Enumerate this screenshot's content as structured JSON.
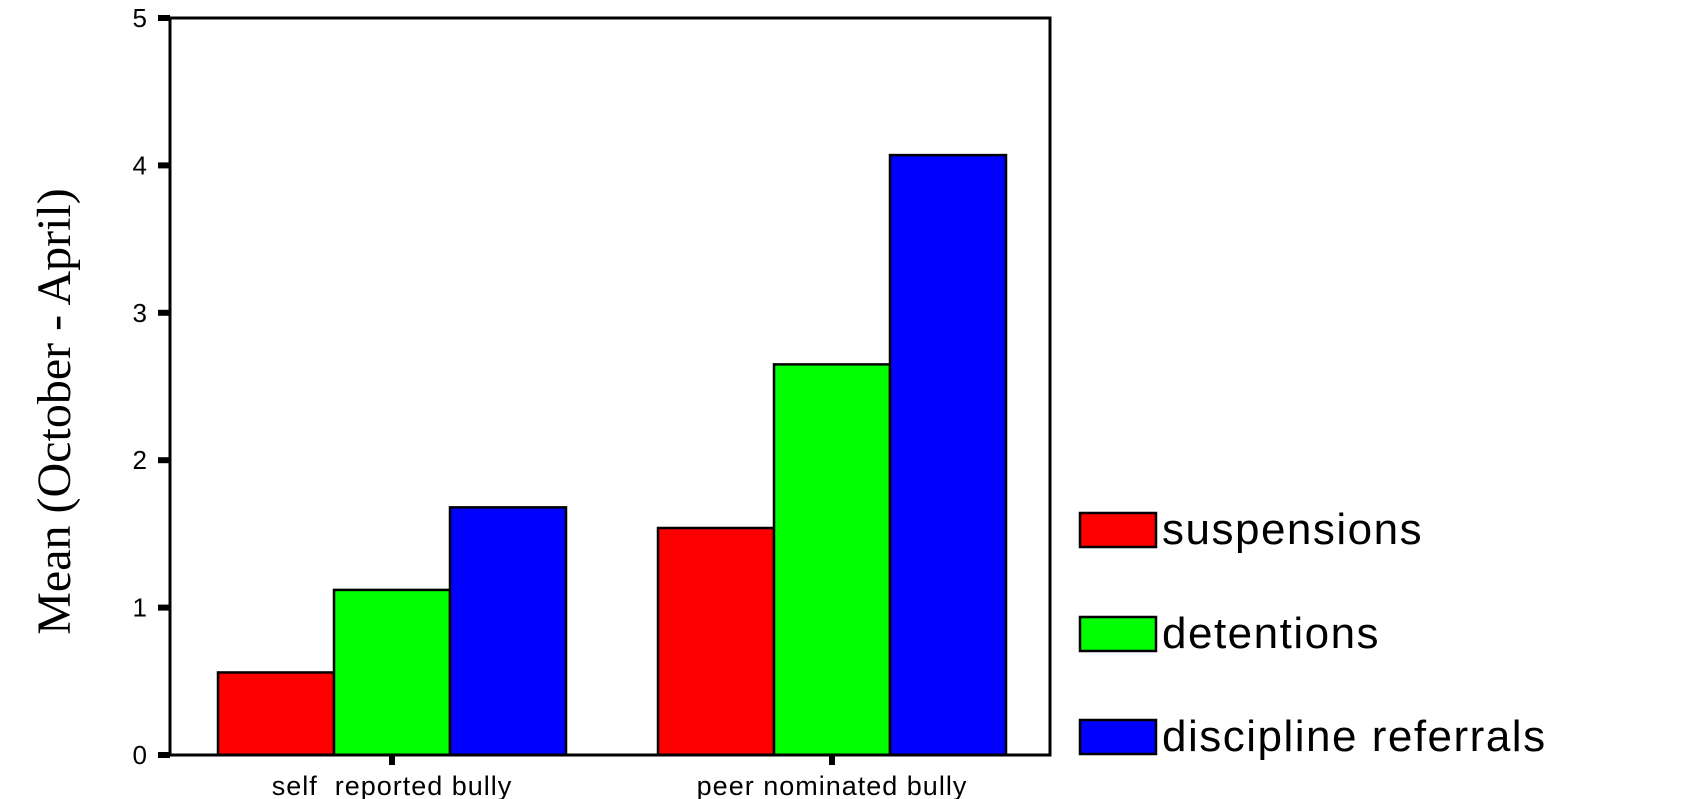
{
  "chart_data": {
    "type": "bar",
    "title": "",
    "xlabel": "",
    "ylabel": "Mean (October - April)",
    "ylim": [
      0,
      5
    ],
    "yticks": [
      0,
      1,
      2,
      3,
      4,
      5
    ],
    "categories": [
      "self  reported bully",
      "peer nominated bully"
    ],
    "series": [
      {
        "name": "suspensions",
        "color": "#ff0000",
        "values": [
          0.56,
          1.54
        ]
      },
      {
        "name": "detentions",
        "color": "#00ff00",
        "values": [
          1.12,
          2.65
        ]
      },
      {
        "name": "discipline referrals",
        "color": "#0000ff",
        "values": [
          1.68,
          4.07
        ]
      }
    ],
    "grid": false,
    "legend_position": "right"
  }
}
